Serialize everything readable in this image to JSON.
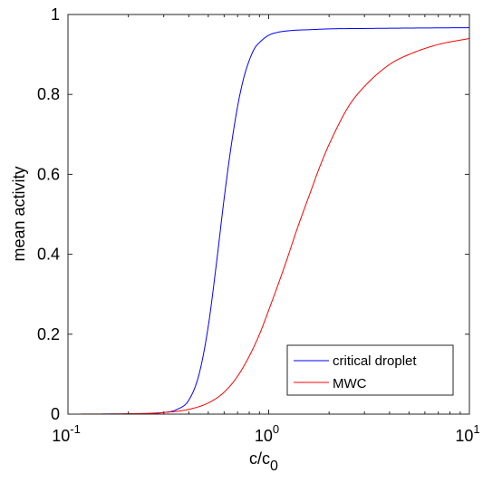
{
  "chart_data": {
    "type": "line",
    "title": "",
    "xlabel": "c/c",
    "xlabel_subscript": "0",
    "ylabel": "mean activity",
    "xscale": "log",
    "xlim": [
      0.1,
      10
    ],
    "ylim": [
      0,
      1
    ],
    "x_ticks": [
      {
        "value": 0.1,
        "base": "10",
        "exp": "-1"
      },
      {
        "value": 1,
        "base": "10",
        "exp": "0"
      },
      {
        "value": 10,
        "base": "10",
        "exp": "1"
      }
    ],
    "y_ticks": [
      {
        "value": 0,
        "label": "0"
      },
      {
        "value": 0.2,
        "label": "0.2"
      },
      {
        "value": 0.4,
        "label": "0.4"
      },
      {
        "value": 0.6,
        "label": "0.6"
      },
      {
        "value": 0.8,
        "label": "0.8"
      },
      {
        "value": 1,
        "label": "1"
      }
    ],
    "grid": false,
    "legend_position": "bottom-right",
    "series": [
      {
        "name": "critical droplet",
        "color": "#0000ff",
        "x": [
          0.1,
          0.2,
          0.3,
          0.35,
          0.4,
          0.45,
          0.5,
          0.55,
          0.6,
          0.65,
          0.7,
          0.75,
          0.8,
          0.85,
          0.9,
          1.0,
          1.1,
          1.3,
          1.6,
          2.0,
          3.0,
          5.0,
          10.0
        ],
        "values": [
          0.0,
          0.0005,
          0.004,
          0.012,
          0.035,
          0.1,
          0.22,
          0.38,
          0.54,
          0.67,
          0.77,
          0.84,
          0.885,
          0.915,
          0.93,
          0.948,
          0.955,
          0.96,
          0.962,
          0.964,
          0.965,
          0.966,
          0.967
        ]
      },
      {
        "name": "MWC",
        "color": "#ff0000",
        "x": [
          0.1,
          0.2,
          0.3,
          0.4,
          0.5,
          0.6,
          0.7,
          0.8,
          0.9,
          1.0,
          1.2,
          1.4,
          1.6,
          1.8,
          2.0,
          2.5,
          3.0,
          4.0,
          5.0,
          7.0,
          10.0
        ],
        "values": [
          0.0,
          0.001,
          0.004,
          0.012,
          0.028,
          0.055,
          0.095,
          0.145,
          0.2,
          0.26,
          0.37,
          0.47,
          0.55,
          0.62,
          0.675,
          0.77,
          0.82,
          0.875,
          0.9,
          0.925,
          0.94
        ]
      }
    ]
  }
}
